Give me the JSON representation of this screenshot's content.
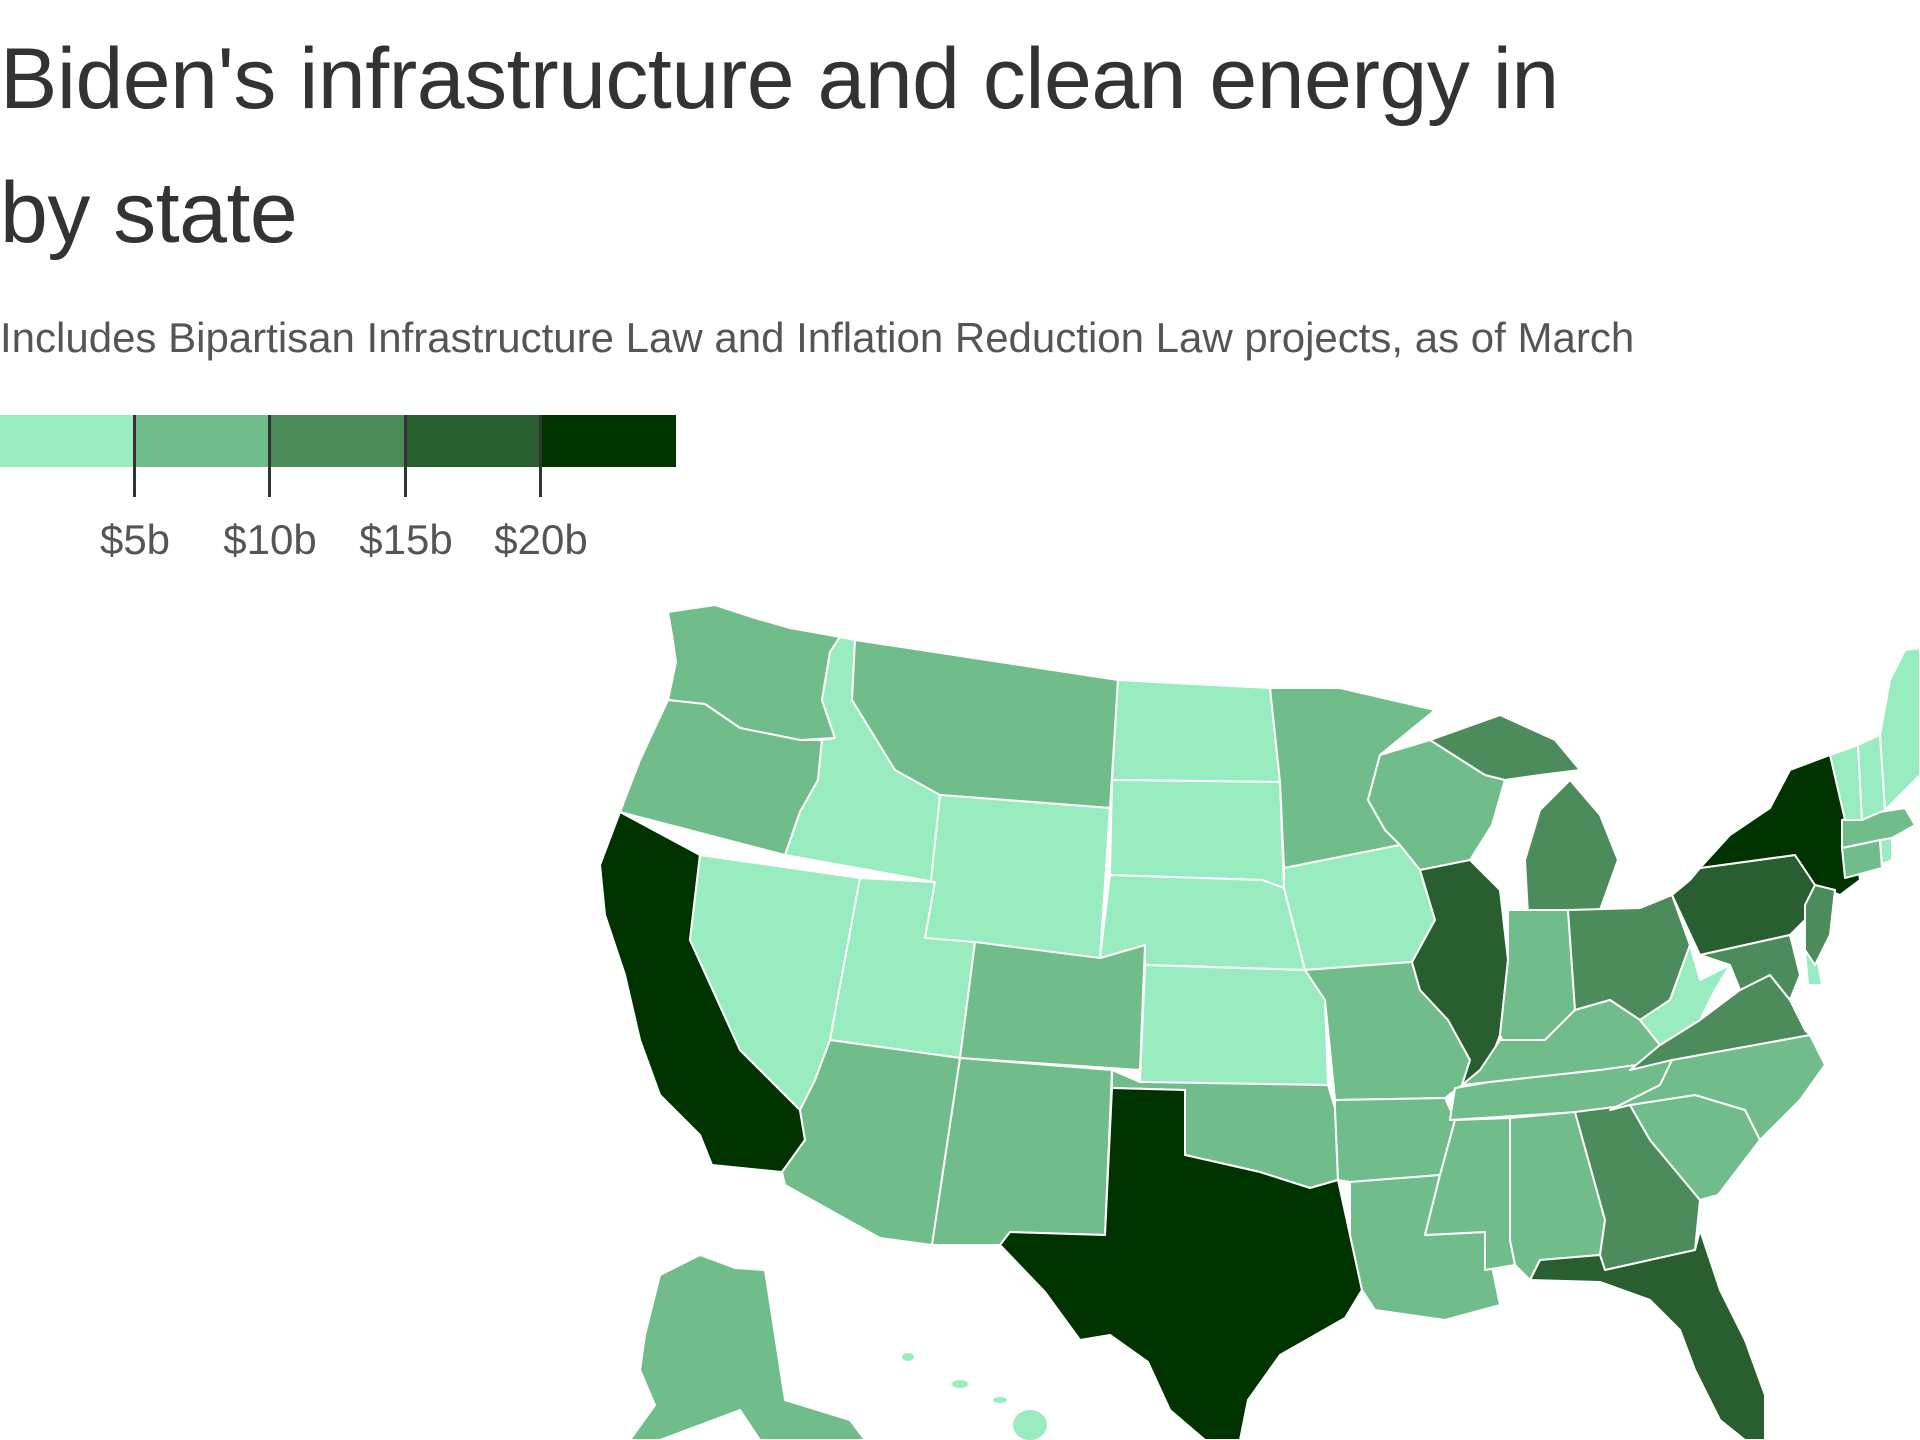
{
  "title": {
    "line1": "Biden's infrastructure and clean energy in",
    "line2": "by state"
  },
  "subtitle": "Includes Bipartisan Infrastructure Law and Inflation Reduction Law projects, as of March",
  "legend": {
    "colors": [
      "#98ecbf",
      "#70bc8b",
      "#4c8c5c",
      "#285e30",
      "#003300"
    ],
    "labels": [
      "$5b",
      "$10b",
      "$15b",
      "$20b"
    ]
  },
  "map_data": {
    "type": "choropleth",
    "value_unit": "USD billions",
    "bins": [
      {
        "range": "< $5b",
        "color": "#98ecbf"
      },
      {
        "range": "$5b–$10b",
        "color": "#70bc8b"
      },
      {
        "range": "$10b–$15b",
        "color": "#4c8c5c"
      },
      {
        "range": "$15b–$20b",
        "color": "#285e30"
      },
      {
        "range": "> $20b",
        "color": "#003300"
      }
    ],
    "states": {
      "WA": 1,
      "OR": 1,
      "CA": 4,
      "ID": 0,
      "NV": 0,
      "MT": 1,
      "WY": 0,
      "UT": 0,
      "AZ": 1,
      "CO": 1,
      "NM": 1,
      "ND": 0,
      "SD": 0,
      "NE": 0,
      "KS": 0,
      "OK": 1,
      "TX": 4,
      "MN": 1,
      "IA": 0,
      "MO": 1,
      "AR": 1,
      "LA": 1,
      "WI": 1,
      "IL": 3,
      "MI": 2,
      "IN": 1,
      "OH": 2,
      "KY": 1,
      "TN": 1,
      "MS": 1,
      "AL": 1,
      "GA": 2,
      "FL": 3,
      "SC": 1,
      "NC": 1,
      "VA": 2,
      "WV": 0,
      "PA": 3,
      "NY": 4,
      "MD": 2,
      "DE": 0,
      "NJ": 2,
      "CT": 1,
      "RI": 0,
      "MA": 1,
      "VT": 0,
      "NH": 0,
      "ME": 0,
      "AK": 1,
      "HI": 0
    }
  }
}
